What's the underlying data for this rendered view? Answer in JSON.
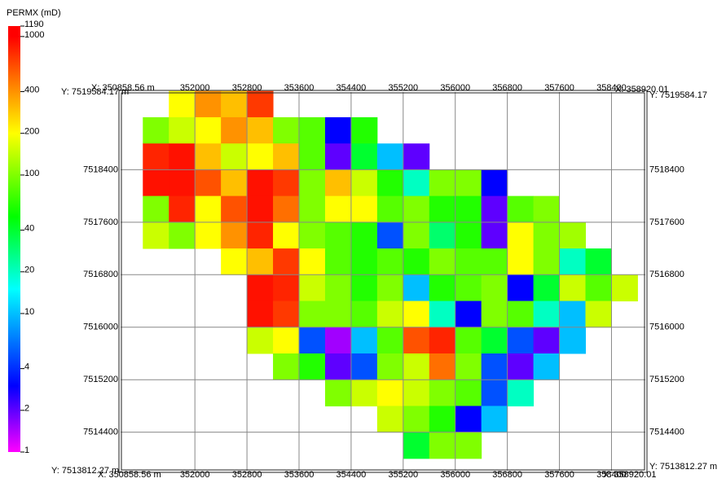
{
  "chart_data": {
    "type": "heatmap",
    "colorbar": {
      "title": "PERMX (mD)",
      "lim": [
        1,
        1190
      ],
      "ticks": [
        1,
        2,
        4,
        10,
        20,
        40,
        100,
        200,
        400,
        1000,
        1190
      ],
      "log": true
    },
    "colormap": [
      {
        "value": 1,
        "color": "#ff00ff"
      },
      {
        "value": 3,
        "color": "#0000ff"
      },
      {
        "value": 15,
        "color": "#00ffff"
      },
      {
        "value": 50,
        "color": "#00ff00"
      },
      {
        "value": 200,
        "color": "#ffff00"
      },
      {
        "value": 450,
        "color": "#ff8000"
      },
      {
        "value": 1000,
        "color": "#ff0000"
      }
    ],
    "xlim": [
      350858.56,
      358920.01
    ],
    "ylim": [
      7513812.27,
      7519584.17
    ],
    "xticks": [
      352000,
      352800,
      353600,
      354400,
      355200,
      356000,
      356800,
      357600,
      358400
    ],
    "yticks": [
      7514400,
      7515200,
      7516000,
      7516800,
      7517600,
      7518400
    ],
    "grid": true,
    "corner_labels": {
      "top_left_y": "Y: 7519584.17 m",
      "top_left_x": "X: 350858.56 m",
      "top_right_x": "X: 358920.01",
      "top_right_y": "Y: 7519584.17",
      "bottom_left_y": "Y: 7513812.27 m",
      "bottom_left_x": "X: 350858.56 m",
      "bottom_right_x": "X: 358920.01",
      "bottom_right_y": "Y: 7513812.27 m"
    },
    "x": [
      351400,
      351800,
      352200,
      352600,
      353000,
      353400,
      353800,
      354200,
      354600,
      355000,
      355400,
      355800,
      356200,
      356600,
      357000,
      357400,
      357800,
      358200,
      358600
    ],
    "y": [
      7519400,
      7519000,
      7518600,
      7518200,
      7517800,
      7517400,
      7517000,
      7516600,
      7516200,
      7515800,
      7515400,
      7515000,
      7514600,
      7514200
    ],
    "values": [
      [
        null,
        200,
        400,
        300,
        700,
        null,
        null,
        null,
        null,
        null,
        null,
        null,
        null,
        null,
        null,
        null,
        null,
        null,
        null
      ],
      [
        100,
        150,
        200,
        400,
        300,
        100,
        80,
        3,
        60,
        null,
        null,
        null,
        null,
        null,
        null,
        null,
        null,
        null,
        null
      ],
      [
        800,
        900,
        300,
        150,
        200,
        300,
        80,
        2,
        40,
        10,
        2,
        null,
        null,
        null,
        null,
        null,
        null,
        null,
        null
      ],
      [
        900,
        900,
        600,
        300,
        900,
        700,
        100,
        300,
        150,
        60,
        20,
        100,
        100,
        3,
        null,
        null,
        null,
        null,
        null
      ],
      [
        100,
        800,
        200,
        600,
        900,
        500,
        100,
        200,
        200,
        80,
        100,
        60,
        60,
        2,
        80,
        100,
        null,
        null,
        null
      ],
      [
        150,
        100,
        200,
        400,
        800,
        200,
        100,
        80,
        60,
        5,
        100,
        30,
        60,
        2,
        200,
        100,
        120,
        null,
        null
      ],
      [
        null,
        null,
        null,
        200,
        300,
        700,
        200,
        80,
        60,
        80,
        60,
        100,
        80,
        80,
        200,
        100,
        20,
        40,
        null
      ],
      [
        null,
        null,
        null,
        null,
        900,
        800,
        150,
        100,
        60,
        100,
        10,
        60,
        80,
        100,
        3,
        40,
        150,
        80,
        150
      ],
      [
        null,
        null,
        null,
        null,
        900,
        700,
        100,
        100,
        80,
        150,
        200,
        20,
        3,
        100,
        80,
        20,
        10,
        150,
        null
      ],
      [
        null,
        null,
        null,
        null,
        150,
        200,
        5,
        1.5,
        10,
        80,
        600,
        800,
        80,
        40,
        5,
        2,
        10,
        null,
        null
      ],
      [
        null,
        null,
        null,
        null,
        null,
        100,
        60,
        2,
        5,
        100,
        150,
        500,
        100,
        5,
        2,
        10,
        null,
        null,
        null
      ],
      [
        null,
        null,
        null,
        null,
        null,
        null,
        null,
        100,
        150,
        200,
        150,
        100,
        80,
        5,
        20,
        null,
        null,
        null,
        null
      ],
      [
        null,
        null,
        null,
        null,
        null,
        null,
        null,
        null,
        null,
        150,
        100,
        60,
        3,
        10,
        null,
        null,
        null,
        null,
        null
      ],
      [
        null,
        null,
        null,
        null,
        null,
        null,
        null,
        null,
        null,
        null,
        40,
        100,
        100,
        null,
        null,
        null,
        null,
        null,
        null
      ]
    ]
  }
}
